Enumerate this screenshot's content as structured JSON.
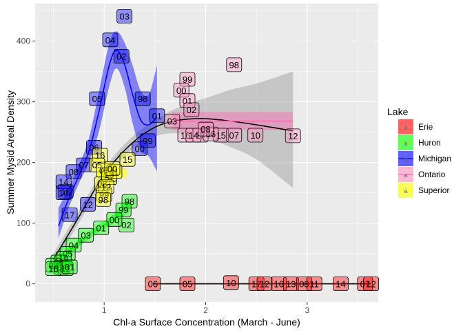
{
  "chart_data": {
    "type": "scatter",
    "title": "",
    "xlabel": "Chl-a Surface Concentration (March - June)",
    "ylabel": "Summer Mysid Areal Density",
    "xlim": [
      0.32,
      3.7
    ],
    "ylim": [
      -30,
      462
    ],
    "x_ticks": [
      1,
      2,
      3
    ],
    "y_ticks": [
      0,
      100,
      200,
      300,
      400
    ],
    "grid": true,
    "legend": {
      "title": "Lake",
      "position": "right"
    },
    "series": [
      {
        "name": "Erie",
        "color": "#f8766d",
        "fill": "#ff0000",
        "points": [
          {
            "label": "06",
            "x": 1.48,
            "y": 0
          },
          {
            "label": "05",
            "x": 1.82,
            "y": 0
          },
          {
            "label": "10",
            "x": 2.25,
            "y": 2
          },
          {
            "label": "17",
            "x": 2.5,
            "y": 0
          },
          {
            "label": "12",
            "x": 2.58,
            "y": 0
          },
          {
            "label": "16",
            "x": 2.72,
            "y": 0
          },
          {
            "label": "13",
            "x": 2.84,
            "y": 0
          },
          {
            "label": "08",
            "x": 2.97,
            "y": 0
          },
          {
            "label": "11",
            "x": 3.07,
            "y": 0
          },
          {
            "label": "14",
            "x": 3.33,
            "y": 0
          },
          {
            "label": "07",
            "x": 3.57,
            "y": 0
          },
          {
            "label": "12",
            "x": 3.63,
            "y": 0
          }
        ]
      },
      {
        "name": "Huron",
        "color": "#7cfc00",
        "fill": "#00ff00",
        "points": [
          {
            "label": "98",
            "x": 1.25,
            "y": 136
          },
          {
            "label": "99",
            "x": 1.19,
            "y": 122
          },
          {
            "label": "02",
            "x": 1.22,
            "y": 97
          },
          {
            "label": "00",
            "x": 1.1,
            "y": 106
          },
          {
            "label": "01",
            "x": 0.97,
            "y": 92
          },
          {
            "label": "03",
            "x": 0.82,
            "y": 80
          },
          {
            "label": "04",
            "x": 0.7,
            "y": 64
          },
          {
            "label": "05",
            "x": 0.64,
            "y": 50
          },
          {
            "label": "10",
            "x": 0.6,
            "y": 42
          },
          {
            "label": "06",
            "x": 0.55,
            "y": 36
          },
          {
            "label": "07",
            "x": 0.5,
            "y": 31
          },
          {
            "label": "08",
            "x": 0.58,
            "y": 27
          },
          {
            "label": "11",
            "x": 0.62,
            "y": 25
          },
          {
            "label": "01",
            "x": 0.66,
            "y": 28
          },
          {
            "label": "16",
            "x": 0.5,
            "y": 25
          }
        ]
      },
      {
        "name": "Michigan",
        "color": "#0000ff",
        "fill": "#0000ff",
        "points": [
          {
            "label": "03",
            "x": 1.2,
            "y": 441
          },
          {
            "label": "04",
            "x": 1.06,
            "y": 402
          },
          {
            "label": "02",
            "x": 1.17,
            "y": 375
          },
          {
            "label": "05",
            "x": 0.93,
            "y": 305
          },
          {
            "label": "98",
            "x": 1.38,
            "y": 305
          },
          {
            "label": "01",
            "x": 1.52,
            "y": 277
          },
          {
            "label": "99",
            "x": 1.43,
            "y": 236
          },
          {
            "label": "00",
            "x": 1.35,
            "y": 223
          },
          {
            "label": "06",
            "x": 0.9,
            "y": 225
          },
          {
            "label": "07",
            "x": 0.8,
            "y": 196
          },
          {
            "label": "08",
            "x": 0.7,
            "y": 185
          },
          {
            "label": "14",
            "x": 0.6,
            "y": 168
          },
          {
            "label": "16",
            "x": 0.62,
            "y": 152
          },
          {
            "label": "12",
            "x": 0.84,
            "y": 131
          },
          {
            "label": "17",
            "x": 0.66,
            "y": 114
          },
          {
            "label": "10",
            "x": 0.6,
            "y": 150
          }
        ]
      },
      {
        "name": "Ontario",
        "color": "#ff69b4",
        "fill": "#ff8fbf",
        "points": [
          {
            "label": "99",
            "x": 1.82,
            "y": 337
          },
          {
            "label": "00",
            "x": 1.76,
            "y": 319
          },
          {
            "label": "01",
            "x": 1.82,
            "y": 302
          },
          {
            "label": "02",
            "x": 1.86,
            "y": 287
          },
          {
            "label": "98",
            "x": 2.28,
            "y": 361
          },
          {
            "label": "03",
            "x": 1.67,
            "y": 268
          },
          {
            "label": "10",
            "x": 2.49,
            "y": 245
          },
          {
            "label": "12",
            "x": 2.86,
            "y": 244
          },
          {
            "label": "16",
            "x": 1.8,
            "y": 245
          },
          {
            "label": "17",
            "x": 1.95,
            "y": 245
          },
          {
            "label": "15",
            "x": 2.15,
            "y": 245
          },
          {
            "label": "14",
            "x": 1.88,
            "y": 245
          },
          {
            "label": "06",
            "x": 2.05,
            "y": 247
          },
          {
            "label": "08",
            "x": 2.0,
            "y": 255
          },
          {
            "label": "07",
            "x": 2.28,
            "y": 245
          }
        ]
      },
      {
        "name": "Superior",
        "color": "#ffff00",
        "fill": "#ffff00",
        "points": [
          {
            "label": "15",
            "x": 1.23,
            "y": 205
          },
          {
            "label": "16",
            "x": 0.96,
            "y": 212
          },
          {
            "label": "05",
            "x": 0.93,
            "y": 196
          },
          {
            "label": "06",
            "x": 1.0,
            "y": 187
          },
          {
            "label": "07",
            "x": 1.05,
            "y": 175
          },
          {
            "label": "08",
            "x": 0.98,
            "y": 165
          },
          {
            "label": "10",
            "x": 1.05,
            "y": 180
          },
          {
            "label": "11",
            "x": 1.1,
            "y": 185
          },
          {
            "label": "12",
            "x": 1.02,
            "y": 160
          },
          {
            "label": "99",
            "x": 1.0,
            "y": 147
          },
          {
            "label": "98",
            "x": 0.99,
            "y": 139
          },
          {
            "label": "00",
            "x": 1.08,
            "y": 190
          }
        ]
      }
    ],
    "smooths": [
      {
        "name": "Michigan",
        "color": "#0000ff",
        "fill": "#0000ff",
        "x": [
          0.55,
          0.65,
          0.75,
          0.85,
          0.95,
          1.05,
          1.12,
          1.2,
          1.28,
          1.36,
          1.44,
          1.52
        ],
        "y": [
          95,
          140,
          178,
          218,
          285,
          360,
          385,
          362,
          312,
          270,
          262,
          275
        ],
        "lower": [
          75,
          125,
          165,
          200,
          252,
          325,
          355,
          325,
          265,
          220,
          210,
          185
        ],
        "upper": [
          125,
          158,
          195,
          240,
          318,
          396,
          416,
          398,
          360,
          318,
          312,
          360
        ]
      },
      {
        "name": "Ontario",
        "color": "#ff69b4",
        "fill": "#ff69b4",
        "x": [
          1.67,
          2.86
        ],
        "y": [
          268,
          268
        ],
        "lower": [
          253,
          253
        ],
        "upper": [
          283,
          283
        ]
      },
      {
        "name": "Erie",
        "color": "#000000",
        "fill": "#ff0000",
        "x": [
          1.48,
          3.63
        ],
        "y": [
          0,
          0
        ],
        "lower": [
          -1,
          -1
        ],
        "upper": [
          1,
          1
        ]
      },
      {
        "name": "Superior",
        "color": "#ffff00",
        "fill": "#ffff00",
        "x": [
          0.93,
          1.23
        ],
        "y": [
          182,
          182
        ],
        "lower": [
          174,
          174
        ],
        "upper": [
          190,
          190
        ]
      },
      {
        "name": "Huron",
        "color": "#00ff00",
        "fill": "#00ff00",
        "x": [
          0.5,
          0.7,
          0.9,
          1.1,
          1.25
        ],
        "y": [
          28,
          60,
          86,
          108,
          132
        ],
        "lower": [
          22,
          54,
          80,
          100,
          120
        ],
        "upper": [
          34,
          66,
          92,
          116,
          144
        ]
      },
      {
        "name": "overall",
        "color": "#000000",
        "fill": "#999999",
        "x": [
          0.5,
          0.75,
          1.0,
          1.25,
          1.5,
          1.75,
          2.0,
          2.25,
          2.5,
          2.86
        ],
        "y": [
          40,
          110,
          180,
          228,
          258,
          270,
          272,
          268,
          262,
          252
        ],
        "lower": [
          30,
          100,
          170,
          218,
          243,
          248,
          240,
          225,
          205,
          158
        ],
        "upper": [
          50,
          120,
          190,
          238,
          270,
          292,
          306,
          320,
          330,
          350
        ]
      }
    ]
  }
}
